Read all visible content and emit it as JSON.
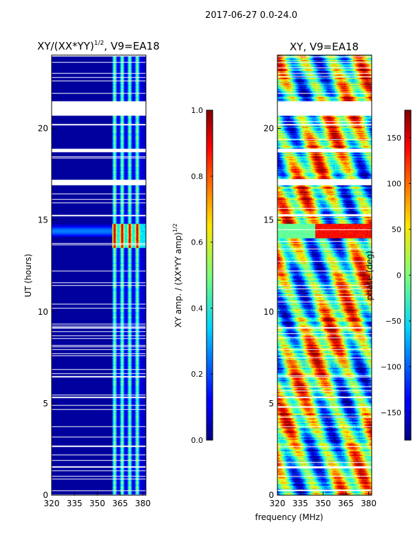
{
  "figure": {
    "suptitle": "2017-06-27 0.0-24.0",
    "shared_xlabel": "frequency (MHz)"
  },
  "colors": {
    "masked": "#ffffff",
    "colormap": "jet"
  },
  "chart_data": [
    {
      "type": "heatmap",
      "id": "amp",
      "title_main": "XY/(XX*YY)",
      "title_exp": "1/2",
      "title_suffix": ", V9=EA18",
      "ylabel": "UT (hours)",
      "xlim": [
        320,
        382
      ],
      "ylim": [
        0,
        24
      ],
      "xticks": [
        320,
        335,
        350,
        365,
        380
      ],
      "yticks": [
        0,
        5,
        10,
        15,
        20
      ],
      "colorbar": {
        "label_main": "XY amp. / (XX*YY amp)",
        "label_exp": "1/2",
        "range": [
          0.0,
          1.0
        ],
        "ticks": [
          "0.0",
          "0.2",
          "0.4",
          "0.6",
          "0.8",
          "1.0"
        ],
        "tick_values": [
          0.0,
          0.2,
          0.4,
          0.6,
          0.8,
          1.0
        ]
      },
      "bright_band_mhz": [
        360,
        382
      ],
      "bright_channels_mhz": [
        361.5,
        366.5,
        371.5,
        376.5
      ],
      "flare_hours": [
        13.5,
        14.8
      ],
      "flagged_hour_ranges": [
        [
          0.2,
          0.25
        ],
        [
          1.0,
          1.05
        ],
        [
          1.5,
          1.55
        ],
        [
          2.6,
          2.65
        ],
        [
          3.7,
          3.75
        ],
        [
          5.3,
          5.35
        ],
        [
          6.4,
          6.45
        ],
        [
          7.9,
          7.95
        ],
        [
          9.1,
          9.15
        ],
        [
          11.4,
          11.45
        ],
        [
          12.2,
          12.25
        ],
        [
          15.2,
          15.3
        ],
        [
          16.9,
          17.2
        ],
        [
          18.7,
          18.9
        ],
        [
          20.2,
          20.25
        ],
        [
          20.7,
          21.5
        ],
        [
          21.9,
          21.95
        ],
        [
          23.0,
          23.05
        ]
      ]
    },
    {
      "type": "heatmap",
      "id": "phase",
      "title_main": "XY, V9=EA18",
      "ylabel": "phase (deg)",
      "xlim": [
        320,
        382
      ],
      "ylim": [
        0,
        24
      ],
      "xticks": [
        320,
        335,
        350,
        365,
        380
      ],
      "yticks": [
        0,
        5,
        10,
        15,
        20
      ],
      "colorbar": {
        "range": [
          -180,
          180
        ],
        "ticks": [
          "−150",
          "−100",
          "−50",
          "0",
          "50",
          "100",
          "150"
        ],
        "tick_values": [
          -150,
          -100,
          -50,
          0,
          50,
          100,
          150
        ]
      },
      "flagged_hour_ranges": [
        [
          0.2,
          0.25
        ],
        [
          1.0,
          1.05
        ],
        [
          1.5,
          1.55
        ],
        [
          2.6,
          2.65
        ],
        [
          3.7,
          3.75
        ],
        [
          5.3,
          5.35
        ],
        [
          6.4,
          6.45
        ],
        [
          7.9,
          7.95
        ],
        [
          9.1,
          9.15
        ],
        [
          11.4,
          11.45
        ],
        [
          12.2,
          12.25
        ],
        [
          15.2,
          15.3
        ],
        [
          16.9,
          17.2
        ],
        [
          18.7,
          18.9
        ],
        [
          20.2,
          20.25
        ],
        [
          20.7,
          21.5
        ],
        [
          21.9,
          21.95
        ],
        [
          23.0,
          23.05
        ]
      ]
    }
  ]
}
